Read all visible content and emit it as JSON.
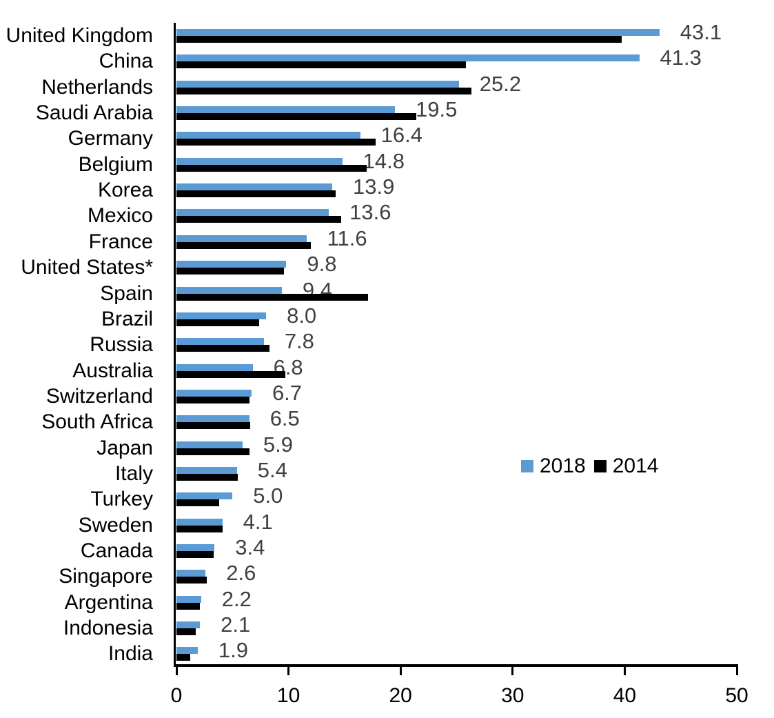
{
  "chart_data": {
    "type": "bar",
    "orientation": "horizontal",
    "categories": [
      "United Kingdom",
      "China",
      "Netherlands",
      "Saudi Arabia",
      "Germany",
      "Belgium",
      "Korea",
      "Mexico",
      "France",
      "United States*",
      "Spain",
      "Brazil",
      "Russia",
      "Australia",
      "Switzerland",
      "South Africa",
      "Japan",
      "Italy",
      "Turkey",
      "Sweden",
      "Canada",
      "Singapore",
      "Argentina",
      "Indonesia",
      "India"
    ],
    "series": [
      {
        "name": "2018",
        "color": "#5B9BD5",
        "values": [
          43.1,
          41.3,
          25.2,
          19.5,
          16.4,
          14.8,
          13.9,
          13.6,
          11.6,
          9.8,
          9.4,
          8.0,
          7.8,
          6.8,
          6.7,
          6.5,
          5.9,
          5.4,
          5.0,
          4.1,
          3.4,
          2.6,
          2.2,
          2.1,
          1.9
        ]
      },
      {
        "name": "2014",
        "color": "#000000",
        "values": [
          39.7,
          25.8,
          26.3,
          21.4,
          17.8,
          17.0,
          14.2,
          14.7,
          12.0,
          9.6,
          17.1,
          7.4,
          8.3,
          9.7,
          6.5,
          6.6,
          6.5,
          5.5,
          3.8,
          4.1,
          3.3,
          2.7,
          2.1,
          1.7,
          1.2
        ]
      }
    ],
    "data_labels": [
      "43.1",
      "41.3",
      "25.2",
      "19.5",
      "16.4",
      "14.8",
      "13.9",
      "13.6",
      "11.6",
      "9.8",
      "9.4",
      "8.0",
      "7.8",
      "6.8",
      "6.7",
      "6.5",
      "5.9",
      "5.4",
      "5.0",
      "4.1",
      "3.4",
      "2.6",
      "2.2",
      "2.1",
      "1.9"
    ],
    "data_label_series": "2018",
    "data_label_color": "#404040",
    "title": "",
    "xlabel": "",
    "ylabel": "",
    "xlim": [
      0,
      50
    ],
    "x_ticks": [
      "0",
      "10",
      "20",
      "30",
      "40",
      "50"
    ],
    "grid": false,
    "legend_position": "middle-right"
  },
  "legend": {
    "items": [
      {
        "label": "2018",
        "color": "#5B9BD5"
      },
      {
        "label": "2014",
        "color": "#000000"
      }
    ]
  }
}
